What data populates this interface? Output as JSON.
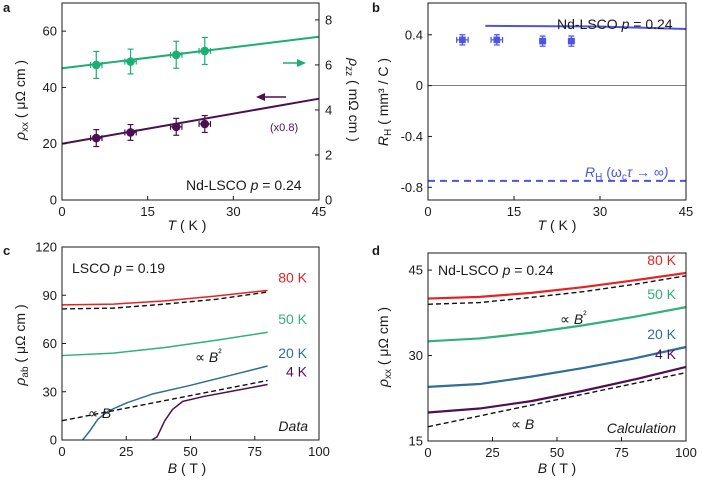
{
  "chart_data": [
    {
      "panel": "a",
      "type": "scatter",
      "annotation": "Nd-LSCO p = 0.24",
      "annotation_parts": [
        "Nd-LSCO ",
        "p",
        " = 0.24"
      ],
      "scale_note": "(x0.8)",
      "xlabel_parts": [
        "T",
        " ( K )"
      ],
      "ylabel_left_parts": [
        "ρ",
        "xx",
        " ( μΩ cm )"
      ],
      "ylabel_right_parts": [
        "ρ",
        "zz",
        " ( mΩ cm )"
      ],
      "xlim": [
        0,
        45
      ],
      "ylim_left": [
        0,
        70
      ],
      "ylim_right": [
        0,
        8.75
      ],
      "x_ticks": [
        "0",
        "15",
        "30",
        "45"
      ],
      "y_left_ticks": [
        "0",
        "20",
        "40",
        "60"
      ],
      "y_right_ticks": [
        "0",
        "2",
        "4",
        "6",
        "8"
      ],
      "series": [
        {
          "name": "rho_zz",
          "axis": "right",
          "color": "#1dae73",
          "x": [
            6,
            12,
            20,
            25
          ],
          "y": [
            6.0,
            6.15,
            6.45,
            6.62
          ],
          "yerr": [
            0.6,
            0.55,
            0.6,
            0.6
          ],
          "xerr": 1.0,
          "fit": [
            [
              0,
              5.85
            ],
            [
              45,
              7.25
            ]
          ]
        },
        {
          "name": "rho_xx",
          "axis": "left",
          "color": "#4a1050",
          "x": [
            6,
            12,
            20,
            25
          ],
          "y": [
            22,
            24,
            26,
            27
          ],
          "yerr": [
            3,
            2.8,
            3,
            3
          ],
          "xerr": 1.0,
          "fit": [
            [
              0,
              20
            ],
            [
              45,
              36
            ]
          ]
        }
      ]
    },
    {
      "panel": "b",
      "type": "scatter",
      "annotation": "Nd-LSCO p = 0.24",
      "annotation_parts": [
        "Nd-LSCO ",
        "p",
        " = 0.24"
      ],
      "limit_label_parts": [
        "R",
        "H",
        " (ω",
        "c",
        "τ → ∞)"
      ],
      "xlabel_parts": [
        "T",
        " ( K )"
      ],
      "ylabel_parts": [
        "R",
        "H",
        " ( mm³ / C )"
      ],
      "xlim": [
        0,
        45
      ],
      "ylim": [
        -0.9,
        0.65
      ],
      "x_ticks": [
        "0",
        "15",
        "30",
        "45"
      ],
      "y_ticks": [
        "0.4",
        "0",
        "-0.4",
        "-0.8"
      ],
      "series": [
        {
          "name": "R_H data",
          "color": "#4b55e0",
          "x": [
            6,
            12,
            20,
            25
          ],
          "y": [
            0.36,
            0.36,
            0.35,
            0.35
          ],
          "yerr": 0.04,
          "xerr": [
            1,
            1,
            0.5,
            0.5
          ]
        },
        {
          "name": "R_H calculation",
          "color": "#4b55e0",
          "line": [
            [
              10,
              0.47
            ],
            [
              30,
              0.465
            ],
            [
              45,
              0.445
            ]
          ]
        },
        {
          "name": "R_H limit",
          "color": "#4b55e0",
          "dashed": true,
          "value": -0.75
        }
      ]
    },
    {
      "panel": "c",
      "type": "line",
      "annotation": "LSCO p = 0.19",
      "annotation_parts": [
        "LSCO ",
        "p",
        " = 0.19"
      ],
      "corner_label": "Data",
      "xlabel_parts": [
        "B",
        " ( T )"
      ],
      "ylabel_parts": [
        "ρ",
        "ab",
        " ( μΩ cm )"
      ],
      "xlim": [
        0,
        100
      ],
      "ylim": [
        0,
        120
      ],
      "x_ticks": [
        "0",
        "25",
        "50",
        "75",
        "100"
      ],
      "y_ticks": [
        "0",
        "30",
        "60",
        "90",
        "120"
      ],
      "fit_labels": [
        [
          "∝ ",
          "B",
          "²"
        ],
        [
          "∝ ",
          "B",
          ""
        ]
      ],
      "series": [
        {
          "name": "80 K",
          "color": "#e82222",
          "points": [
            [
              0,
              84
            ],
            [
              20,
              84.5
            ],
            [
              40,
              86.5
            ],
            [
              60,
              89.5
            ],
            [
              80,
              93
            ]
          ]
        },
        {
          "name": "50 K",
          "color": "#30b07a",
          "points": [
            [
              0,
              52.5
            ],
            [
              20,
              54
            ],
            [
              40,
              57.5
            ],
            [
              60,
              62
            ],
            [
              80,
              67
            ]
          ]
        },
        {
          "name": "20 K",
          "color": "#2f6e95",
          "points": [
            [
              8,
              0
            ],
            [
              11,
              6
            ],
            [
              14,
              13
            ],
            [
              18,
              18
            ],
            [
              25,
              23
            ],
            [
              35,
              28.5
            ],
            [
              50,
              34
            ],
            [
              65,
              40
            ],
            [
              80,
              46
            ]
          ]
        },
        {
          "name": "4 K",
          "color": "#50104f",
          "points": [
            [
              35,
              0
            ],
            [
              37,
              2
            ],
            [
              40,
              12
            ],
            [
              43,
              19
            ],
            [
              47,
              24
            ],
            [
              55,
              27
            ],
            [
              65,
              30
            ],
            [
              80,
              34.5
            ]
          ]
        },
        {
          "name": "B2 fit",
          "color": "#111111",
          "dashed": true,
          "points": [
            [
              0,
              81.5
            ],
            [
              20,
              82
            ],
            [
              40,
              84.5
            ],
            [
              60,
              87.5
            ],
            [
              80,
              92
            ]
          ]
        },
        {
          "name": "B fit",
          "color": "#111111",
          "dashed": true,
          "points": [
            [
              0,
              12
            ],
            [
              80,
              37
            ]
          ]
        }
      ]
    },
    {
      "panel": "d",
      "type": "line",
      "annotation": "Nd-LSCO p = 0.24",
      "annotation_parts": [
        "Nd-LSCO ",
        "p",
        " = 0.24"
      ],
      "corner_label": "Calculation",
      "xlabel_parts": [
        "B",
        " ( T )"
      ],
      "ylabel_parts": [
        "ρ",
        "xx",
        " ( μΩ cm )"
      ],
      "xlim": [
        0,
        100
      ],
      "ylim": [
        15,
        48
      ],
      "x_ticks": [
        "0",
        "25",
        "50",
        "75",
        "100"
      ],
      "y_ticks": [
        "15",
        "30",
        "45"
      ],
      "fit_labels": [
        [
          "∝ ",
          "B",
          "²"
        ],
        [
          "∝ ",
          "B",
          ""
        ]
      ],
      "series": [
        {
          "name": "80 K",
          "color": "#e82222",
          "points": [
            [
              0,
              40
            ],
            [
              20,
              40.3
            ],
            [
              40,
              41
            ],
            [
              60,
              42
            ],
            [
              80,
              43.2
            ],
            [
              100,
              44.5
            ]
          ]
        },
        {
          "name": "50 K",
          "color": "#30b07a",
          "points": [
            [
              0,
              32.5
            ],
            [
              20,
              33
            ],
            [
              40,
              34
            ],
            [
              60,
              35.3
            ],
            [
              80,
              36.8
            ],
            [
              100,
              38.5
            ]
          ]
        },
        {
          "name": "20 K",
          "color": "#2f6e95",
          "points": [
            [
              0,
              24.5
            ],
            [
              20,
              25
            ],
            [
              40,
              26.3
            ],
            [
              60,
              27.8
            ],
            [
              80,
              29.5
            ],
            [
              100,
              31.5
            ]
          ]
        },
        {
          "name": "4 K",
          "color": "#50104f",
          "points": [
            [
              0,
              20
            ],
            [
              20,
              20.7
            ],
            [
              40,
              22
            ],
            [
              60,
              23.8
            ],
            [
              80,
              25.8
            ],
            [
              100,
              28
            ]
          ]
        },
        {
          "name": "B2 fit",
          "color": "#111111",
          "dashed": true,
          "points": [
            [
              0,
              39
            ],
            [
              20,
              39.3
            ],
            [
              40,
              40.2
            ],
            [
              60,
              41.2
            ],
            [
              80,
              42.5
            ],
            [
              100,
              44
            ]
          ]
        },
        {
          "name": "B fit",
          "color": "#111111",
          "dashed": true,
          "points": [
            [
              0,
              17.5
            ],
            [
              100,
              27
            ]
          ]
        }
      ]
    }
  ]
}
